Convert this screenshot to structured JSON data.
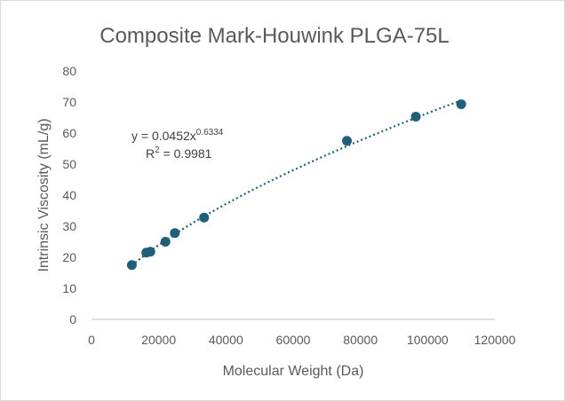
{
  "chart_data": {
    "type": "scatter",
    "title": "Composite Mark-Houwink PLGA-75L",
    "xlabel": "Molecular Weight (Da)",
    "ylabel": "Intrinsic Viscosity (mL/g)",
    "xlim": [
      0,
      120000
    ],
    "ylim": [
      0,
      80
    ],
    "x_ticks": [
      "0",
      "20000",
      "40000",
      "60000",
      "80000",
      "100000",
      "120000"
    ],
    "y_ticks": [
      "0",
      "10",
      "20",
      "30",
      "40",
      "50",
      "60",
      "70",
      "80"
    ],
    "grid": false,
    "legend": "none",
    "marker_color": "#1f5f7a",
    "series": [
      {
        "x": [
          12000,
          16300,
          17500,
          22000,
          24800,
          33500,
          76000,
          96500,
          110000
        ],
        "y": [
          17.5,
          21.5,
          21.8,
          25.0,
          27.8,
          32.8,
          57.5,
          65.3,
          69.3
        ]
      }
    ],
    "trendline": {
      "type": "power",
      "coefficient": 0.0452,
      "exponent": 0.6334,
      "style": "dotted",
      "color": "#1f5f7a",
      "equation_base": "y = 0.0452x",
      "equation_exponent": "0.6334",
      "r2_base": "R",
      "r2_exponent": "2",
      "r2_value": " = 0.9981"
    }
  }
}
